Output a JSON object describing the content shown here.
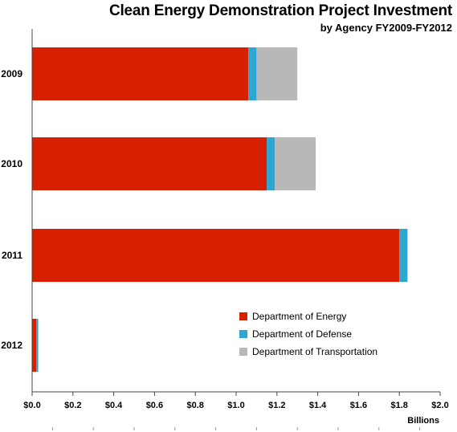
{
  "chart_data": {
    "type": "bar",
    "orientation": "horizontal",
    "stacked": true,
    "title": "Clean Energy Demonstration Project Investment",
    "subtitle": "by Agency FY2009-FY2012",
    "xlabel": "Billions",
    "ylabel": "",
    "categories": [
      "2009",
      "2010",
      "2011",
      "2012"
    ],
    "series": [
      {
        "name": "Department of Energy",
        "color": "#d62000",
        "values": [
          1.06,
          1.15,
          1.8,
          0.02
        ]
      },
      {
        "name": "Department of Defense",
        "color": "#2ea6d2",
        "values": [
          0.04,
          0.04,
          0.04,
          0.01
        ]
      },
      {
        "name": "Department of Transportation",
        "color": "#b8b8b8",
        "values": [
          0.2,
          0.2,
          0.0,
          0.0
        ]
      }
    ],
    "xlim": [
      0,
      2.0
    ],
    "xticks": [
      0,
      0.2,
      0.4,
      0.6,
      0.8,
      1.0,
      1.2,
      1.4,
      1.6,
      1.8,
      2.0
    ],
    "xtick_labels": [
      "$0.0",
      "$0.2",
      "$0.4",
      "$0.6",
      "$0.8",
      "$1.0",
      "$1.2",
      "$1.4",
      "$1.6",
      "$1.8",
      "$2.0"
    ],
    "grid": false,
    "legend_position": "bottom-right"
  }
}
